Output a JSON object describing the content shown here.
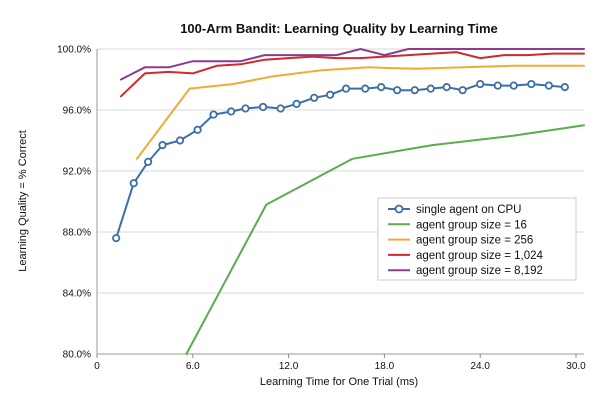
{
  "chart_data": {
    "type": "line",
    "title": "100-Arm Bandit: Learning Quality by Learning Time",
    "xlabel": "Learning Time for One Trial (ms)",
    "ylabel": "Learning Quality = % Correct",
    "xlim": [
      0,
      30.5
    ],
    "ylim": [
      80,
      100
    ],
    "x_ticks": [
      0,
      6,
      12,
      18,
      24,
      30
    ],
    "x_tick_labels": [
      "0",
      "6.0",
      "12.0",
      "18.0",
      "24.0",
      "30.0"
    ],
    "y_ticks": [
      80,
      84,
      88,
      92,
      96,
      100
    ],
    "y_tick_labels": [
      "80.0%",
      "84.0%",
      "88.0%",
      "92.0%",
      "96.0%",
      "100.0%"
    ],
    "grid": "horizontal",
    "legend_position": "lower-right",
    "series": [
      {
        "name": "single agent on CPU",
        "color": "#3c6fa4",
        "marker": "circle",
        "x": [
          1.2,
          2.3,
          3.2,
          4.1,
          5.2,
          6.3,
          7.3,
          8.4,
          9.3,
          10.4,
          11.5,
          12.5,
          13.6,
          14.6,
          15.6,
          16.8,
          17.8,
          18.8,
          19.9,
          20.9,
          21.9,
          22.9,
          24.0,
          25.1,
          26.1,
          27.2,
          28.3,
          29.3
        ],
        "y": [
          87.6,
          91.2,
          92.6,
          93.7,
          94.0,
          94.7,
          95.7,
          95.9,
          96.1,
          96.2,
          96.1,
          96.4,
          96.8,
          97.0,
          97.4,
          97.4,
          97.5,
          97.3,
          97.3,
          97.4,
          97.5,
          97.3,
          97.7,
          97.6,
          97.6,
          97.7,
          97.6,
          97.5
        ]
      },
      {
        "name": "agent group size = 16",
        "color": "#5aac4f",
        "marker": "none",
        "x": [
          5.6,
          10.6,
          16.0,
          21.0,
          26.0,
          30.5
        ],
        "y": [
          80.0,
          89.8,
          92.8,
          93.7,
          94.3,
          95.0
        ]
      },
      {
        "name": "agent group size = 256",
        "color": "#f0ab37",
        "marker": "none",
        "x": [
          2.5,
          5.8,
          8.5,
          11.0,
          14.0,
          17.0,
          20.0,
          23.0,
          26.0,
          30.5
        ],
        "y": [
          92.8,
          97.4,
          97.7,
          98.2,
          98.6,
          98.8,
          98.7,
          98.8,
          98.9,
          98.9
        ],
        "label": "agent group size = 256"
      },
      {
        "name": "agent group size = 1,024",
        "color": "#cc2a2f",
        "marker": "none",
        "x": [
          1.5,
          3.0,
          4.5,
          6.0,
          7.5,
          9.0,
          10.5,
          12.0,
          13.5,
          15.0,
          16.5,
          18.0,
          19.5,
          21.0,
          22.5,
          24.0,
          25.5,
          27.0,
          28.5,
          30.5
        ],
        "y": [
          96.9,
          98.4,
          98.5,
          98.4,
          98.9,
          99.0,
          99.3,
          99.4,
          99.5,
          99.4,
          99.4,
          99.5,
          99.6,
          99.7,
          99.8,
          99.4,
          99.6,
          99.6,
          99.7,
          99.7
        ]
      },
      {
        "name": "agent group size = 8,192",
        "color": "#8d3b8e",
        "marker": "none",
        "x": [
          1.5,
          3.0,
          4.5,
          6.0,
          7.5,
          9.0,
          10.5,
          12.0,
          13.5,
          15.0,
          16.5,
          18.0,
          19.5,
          21.0,
          22.5,
          24.0,
          25.5,
          27.0,
          28.5,
          30.5
        ],
        "y": [
          98.0,
          98.8,
          98.8,
          99.2,
          99.2,
          99.2,
          99.6,
          99.6,
          99.6,
          99.6,
          100.0,
          99.6,
          100.0,
          100.0,
          100.0,
          100.0,
          100.0,
          100.0,
          100.0,
          100.0
        ]
      }
    ]
  }
}
